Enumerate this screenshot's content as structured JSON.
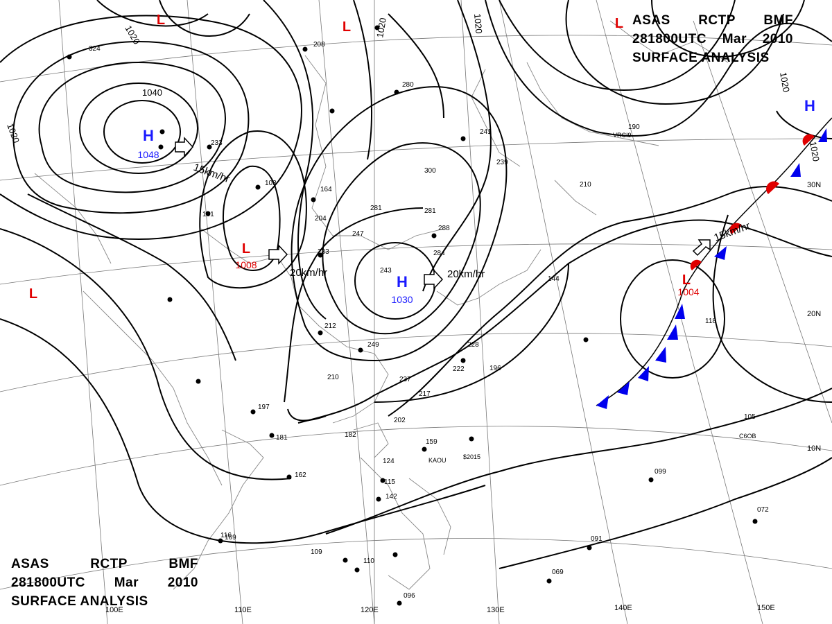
{
  "header": {
    "agency": "ASAS",
    "station": "RCTP",
    "center": "BMF",
    "datetime": "281800UTC",
    "month": "Mar",
    "year": "2010",
    "product": "SURFACE ANALYSIS"
  },
  "colors": {
    "high": "#1a1aff",
    "low": "#e00000",
    "front_warm": "#e00000",
    "front_cold": "#0000ee",
    "isobar": "#000000",
    "grid": "#777777",
    "coast": "#777777"
  },
  "pressure_centers": [
    {
      "type": "H",
      "label": "H",
      "value": "1048",
      "symbol": "high-center"
    },
    {
      "type": "H",
      "label": "H",
      "value": "1030",
      "symbol": "high-center"
    },
    {
      "type": "H",
      "label": "H",
      "value": "",
      "symbol": "high-center"
    },
    {
      "type": "L",
      "label": "L",
      "value": "1008",
      "symbol": "low-center"
    },
    {
      "type": "L",
      "label": "L",
      "value": "1004",
      "symbol": "low-center"
    },
    {
      "type": "L",
      "label": "L",
      "value": "",
      "symbol": "low-center"
    },
    {
      "type": "L",
      "label": "L",
      "value": "",
      "symbol": "low-center"
    },
    {
      "type": "L",
      "label": "L",
      "value": "",
      "symbol": "low-center"
    },
    {
      "type": "L",
      "label": "L",
      "value": "",
      "symbol": "low-center"
    }
  ],
  "isobar_labels": [
    "1020",
    "1020",
    "1020",
    "1020",
    "1040",
    "1020",
    "1020"
  ],
  "motion_labels": [
    "15km/hr",
    "20km/hr",
    "20km/hr",
    "15km/hr"
  ],
  "longitude_labels": [
    "100E",
    "110E",
    "120E",
    "130E",
    "140E",
    "150E"
  ],
  "latitude_labels": [
    "30N",
    "20N",
    "10N"
  ],
  "station_codes": [
    "VRCI9",
    "KAOU",
    "C6OB",
    "$2015"
  ],
  "station_values": [
    "324",
    "208",
    "280",
    "190",
    "241",
    "300",
    "239",
    "210",
    "281",
    "247",
    "243",
    "284",
    "233",
    "212",
    "249",
    "210",
    "237",
    "217",
    "202",
    "182",
    "159",
    "197",
    "181",
    "162",
    "144",
    "228",
    "222",
    "196",
    "118",
    "105",
    "099",
    "072",
    "091",
    "069",
    "096",
    "110",
    "109",
    "124",
    "115",
    "142",
    "169",
    "103",
    "164",
    "204",
    "131",
    "281",
    "288",
    "233",
    "116"
  ]
}
